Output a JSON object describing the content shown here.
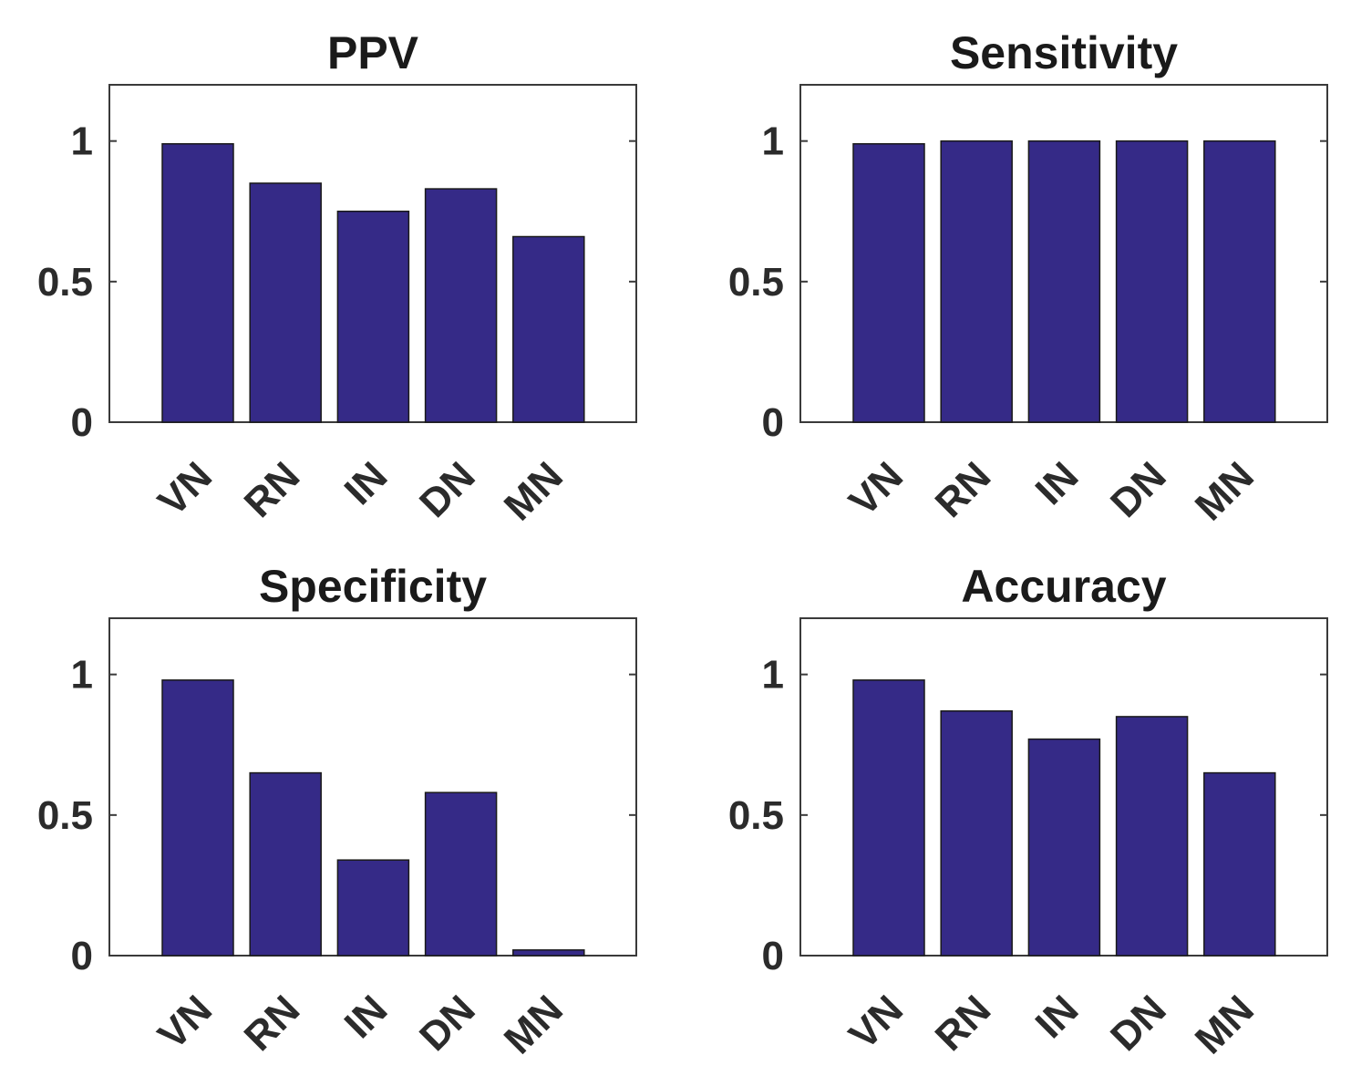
{
  "chart_data": [
    {
      "type": "bar",
      "title": "PPV",
      "categories": [
        "VN",
        "RN",
        "IN",
        "DN",
        "MN"
      ],
      "values": [
        0.99,
        0.85,
        0.75,
        0.83,
        0.66
      ],
      "ylim": [
        0,
        1.2
      ],
      "yticks": [
        0,
        0.5,
        1
      ],
      "ytick_labels": [
        "0",
        "0.5",
        "1"
      ],
      "xlabel": "",
      "ylabel": "",
      "bar_color": "#352a87",
      "grid": false
    },
    {
      "type": "bar",
      "title": "Sensitivity",
      "categories": [
        "VN",
        "RN",
        "IN",
        "DN",
        "MN"
      ],
      "values": [
        0.99,
        1.0,
        1.0,
        1.0,
        1.0
      ],
      "ylim": [
        0,
        1.2
      ],
      "yticks": [
        0,
        0.5,
        1
      ],
      "ytick_labels": [
        "0",
        "0.5",
        "1"
      ],
      "xlabel": "",
      "ylabel": "",
      "bar_color": "#352a87",
      "grid": false
    },
    {
      "type": "bar",
      "title": "Specificity",
      "categories": [
        "VN",
        "RN",
        "IN",
        "DN",
        "MN"
      ],
      "values": [
        0.98,
        0.65,
        0.34,
        0.58,
        0.02
      ],
      "ylim": [
        0,
        1.2
      ],
      "yticks": [
        0,
        0.5,
        1
      ],
      "ytick_labels": [
        "0",
        "0.5",
        "1"
      ],
      "xlabel": "",
      "ylabel": "",
      "bar_color": "#352a87",
      "grid": false
    },
    {
      "type": "bar",
      "title": "Accuracy",
      "categories": [
        "VN",
        "RN",
        "IN",
        "DN",
        "MN"
      ],
      "values": [
        0.98,
        0.87,
        0.77,
        0.85,
        0.65
      ],
      "ylim": [
        0,
        1.2
      ],
      "yticks": [
        0,
        0.5,
        1
      ],
      "ytick_labels": [
        "0",
        "0.5",
        "1"
      ],
      "xlabel": "",
      "ylabel": "",
      "bar_color": "#352a87",
      "grid": false
    }
  ]
}
